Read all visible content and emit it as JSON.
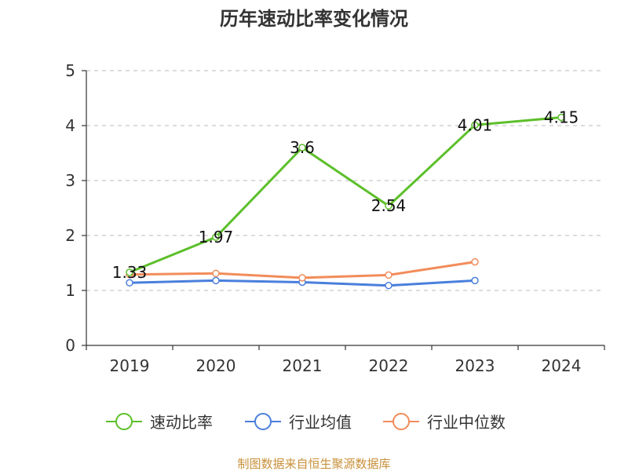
{
  "chart_data": {
    "type": "line",
    "title": "历年速动比率变化情况",
    "categories": [
      "2019",
      "2020",
      "2021",
      "2022",
      "2023",
      "2024"
    ],
    "y_ticks": [
      "0",
      "1",
      "2",
      "3",
      "4",
      "5"
    ],
    "ylim": [
      0,
      5
    ],
    "grid": "horizontal dashed",
    "legend_position": "bottom",
    "series": [
      {
        "name": "速动比率",
        "color": "#5cbf2a",
        "values": [
          1.33,
          1.97,
          3.6,
          2.54,
          4.01,
          4.15
        ],
        "labels": [
          "1.33",
          "1.97",
          "3.6",
          "2.54",
          "4.01",
          "4.15"
        ]
      },
      {
        "name": "行业均值",
        "color": "#4a7fdc",
        "values": [
          1.14,
          1.18,
          1.15,
          1.09,
          1.18,
          null
        ]
      },
      {
        "name": "行业中位数",
        "color": "#f28c5a",
        "values": [
          1.29,
          1.31,
          1.23,
          1.28,
          1.52,
          null
        ]
      }
    ],
    "source": "制图数据来自恒生聚源数据库"
  }
}
